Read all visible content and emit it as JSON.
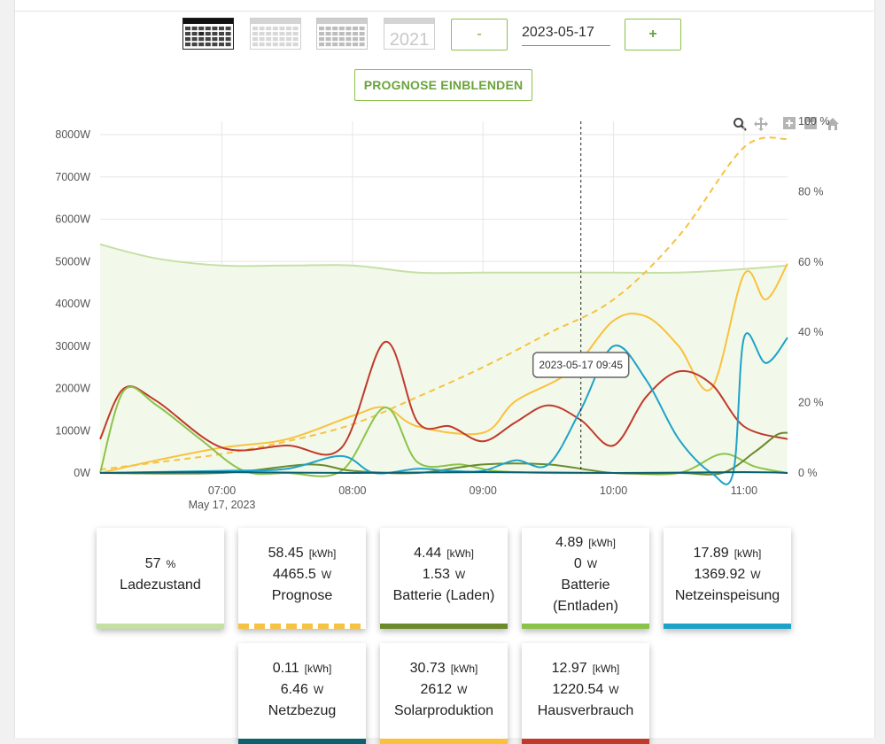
{
  "periods": [
    {
      "id": "day",
      "active": true
    },
    {
      "id": "week",
      "active": false
    },
    {
      "id": "month",
      "active": false
    },
    {
      "id": "year",
      "label": "2021",
      "active": false
    }
  ],
  "nav": {
    "minus_label": "-",
    "date": "2023-05-17",
    "plus_label": "+"
  },
  "forecast_button": "PROGNOSE EINBLENDEN",
  "tooltip": "2023-05-17 09:45",
  "colors": {
    "ladezustand": "#c5e0a5",
    "prognose": "#f5c242",
    "batterie_laden": "#6b8a2c",
    "batterie_entladen": "#8bc34a",
    "netzeinspeisung": "#1ea2c8",
    "netzbezug": "#0b6170",
    "solarproduktion": "#f9c13e",
    "hausverbrauch": "#c0392b",
    "accent": "#8bc34a"
  },
  "chart_data": {
    "type": "line",
    "date_label": "May 17, 2023",
    "x_ticks": [
      "07:00",
      "08:00",
      "09:00",
      "10:00",
      "11:00"
    ],
    "y_left_ticks": [
      "0W",
      "1000W",
      "2000W",
      "3000W",
      "4000W",
      "5000W",
      "6000W",
      "7000W",
      "8000W"
    ],
    "y_right_ticks": [
      "0 %",
      "20 %",
      "40 %",
      "60 %",
      "80 %",
      "100 %"
    ],
    "ylim_left": [
      0,
      8000
    ],
    "ylim_right": [
      0,
      100
    ],
    "xlim_hours": [
      6.0667,
      11.3333
    ],
    "cursor_time": "09:45",
    "series": [
      {
        "name": "Ladezustand",
        "axis": "right",
        "unit": "%",
        "fill": true,
        "x": [
          "06:04",
          "06:30",
          "07:00",
          "07:30",
          "08:00",
          "08:30",
          "09:00",
          "09:30",
          "10:00",
          "10:30",
          "11:00",
          "11:20"
        ],
        "y": [
          65,
          61,
          59,
          59,
          59,
          57,
          57,
          57,
          57,
          57,
          58,
          59
        ]
      },
      {
        "name": "Prognose",
        "axis": "left",
        "unit": "W",
        "dashed": true,
        "x": [
          "06:04",
          "06:30",
          "07:00",
          "07:30",
          "08:00",
          "08:30",
          "09:00",
          "09:30",
          "10:00",
          "10:30",
          "11:00",
          "11:20"
        ],
        "y": [
          80,
          250,
          450,
          750,
          1150,
          1800,
          2500,
          3300,
          4100,
          5600,
          7700,
          7900
        ]
      },
      {
        "name": "Solarproduktion",
        "axis": "left",
        "unit": "W",
        "x": [
          "06:04",
          "06:30",
          "07:00",
          "07:30",
          "08:00",
          "08:15",
          "08:30",
          "09:00",
          "09:15",
          "09:40",
          "10:00",
          "10:15",
          "10:30",
          "10:45",
          "11:00",
          "11:10",
          "11:20"
        ],
        "y": [
          0,
          300,
          600,
          800,
          1350,
          1550,
          1100,
          950,
          1700,
          2400,
          3600,
          3700,
          3000,
          2000,
          4700,
          4100,
          4950
        ]
      },
      {
        "name": "Hausverbrauch",
        "axis": "left",
        "unit": "W",
        "x": [
          "06:04",
          "06:15",
          "06:30",
          "07:00",
          "07:30",
          "07:55",
          "08:15",
          "08:30",
          "08:45",
          "09:00",
          "09:15",
          "09:30",
          "09:45",
          "10:00",
          "10:15",
          "10:30",
          "10:45",
          "11:00",
          "11:20"
        ],
        "y": [
          800,
          2000,
          1700,
          600,
          650,
          600,
          3100,
          1200,
          1100,
          750,
          1200,
          1600,
          1250,
          650,
          1800,
          2400,
          2100,
          1100,
          800
        ]
      },
      {
        "name": "Batterie (Entladen)",
        "axis": "left",
        "unit": "W",
        "x": [
          "06:04",
          "06:15",
          "06:30",
          "06:50",
          "07:10",
          "07:30",
          "07:55",
          "08:15",
          "08:30",
          "08:50",
          "09:05",
          "09:30",
          "10:00",
          "10:30",
          "10:50",
          "11:05",
          "11:20"
        ],
        "y": [
          0,
          1950,
          1600,
          800,
          50,
          0,
          50,
          1550,
          250,
          200,
          50,
          0,
          0,
          0,
          450,
          150,
          0
        ]
      },
      {
        "name": "Batterie (Laden)",
        "axis": "left",
        "unit": "W",
        "x": [
          "06:04",
          "07:00",
          "07:40",
          "08:00",
          "08:30",
          "09:00",
          "09:30",
          "10:00",
          "10:30",
          "10:50",
          "11:05",
          "11:15",
          "11:20"
        ],
        "y": [
          0,
          0,
          200,
          50,
          0,
          200,
          200,
          0,
          0,
          0,
          500,
          900,
          950
        ]
      },
      {
        "name": "Netzeinspeisung",
        "axis": "left",
        "unit": "W",
        "x": [
          "06:04",
          "07:00",
          "07:30",
          "07:55",
          "08:10",
          "08:30",
          "08:45",
          "09:00",
          "09:15",
          "09:30",
          "09:45",
          "10:00",
          "10:15",
          "10:30",
          "10:45",
          "10:55",
          "11:00",
          "11:10",
          "11:20"
        ],
        "y": [
          0,
          50,
          100,
          400,
          0,
          100,
          50,
          50,
          300,
          200,
          1500,
          3000,
          2200,
          800,
          0,
          0,
          3200,
          2600,
          3200
        ]
      },
      {
        "name": "Netzbezug",
        "axis": "left",
        "unit": "W",
        "x": [
          "06:04",
          "07:00",
          "08:00",
          "09:00",
          "10:00",
          "11:00",
          "11:20"
        ],
        "y": [
          0,
          20,
          0,
          20,
          0,
          20,
          0
        ]
      }
    ]
  },
  "cards": [
    {
      "name": "Ladezustand",
      "value": "57",
      "unit": "%",
      "color_key": "ladezustand"
    },
    {
      "name": "Prognose",
      "energy": "58.45",
      "energy_unit": "[kWh]",
      "power": "4465.5",
      "power_unit": "W",
      "color_key": "prognose",
      "dashed": true
    },
    {
      "name": "Batterie (Laden)",
      "energy": "4.44",
      "energy_unit": "[kWh]",
      "power": "1.53",
      "power_unit": "W",
      "color_key": "batterie_laden"
    },
    {
      "name": "Batterie",
      "name2": "(Entladen)",
      "energy": "4.89",
      "energy_unit": "[kWh]",
      "power": "0",
      "power_unit": "W",
      "color_key": "batterie_entladen"
    },
    {
      "name": "Netzeinspeisung",
      "energy": "17.89",
      "energy_unit": "[kWh]",
      "power": "1369.92",
      "power_unit": "W",
      "color_key": "netzeinspeisung"
    },
    {
      "name": "Netzbezug",
      "energy": "0.11",
      "energy_unit": "[kWh]",
      "power": "6.46",
      "power_unit": "W",
      "color_key": "netzbezug"
    },
    {
      "name": "Solarproduktion",
      "energy": "30.73",
      "energy_unit": "[kWh]",
      "power": "2612",
      "power_unit": "W",
      "color_key": "solarproduktion"
    },
    {
      "name": "Hausverbrauch",
      "energy": "12.97",
      "energy_unit": "[kWh]",
      "power": "1220.54",
      "power_unit": "W",
      "color_key": "hausverbrauch"
    }
  ]
}
